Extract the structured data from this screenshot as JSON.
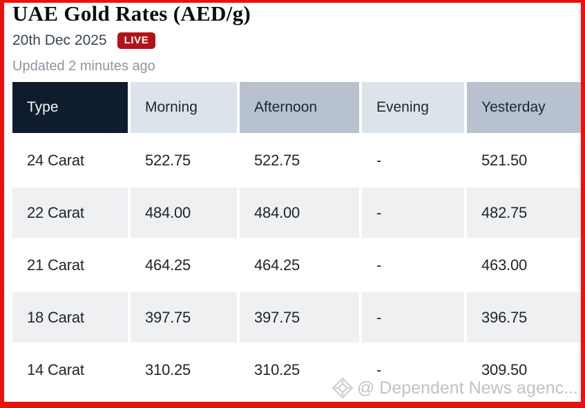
{
  "page": {
    "title": "UAE Gold Rates (AED/g)",
    "date": "20th Dec 2025",
    "live_badge": "LIVE",
    "updated": "Updated 2 minutes ago"
  },
  "table": {
    "columns": [
      "Type",
      "Morning",
      "Afternoon",
      "Evening",
      "Yesterday"
    ],
    "rows": [
      [
        "24 Carat",
        "522.75",
        "522.75",
        "-",
        "521.50"
      ],
      [
        "22 Carat",
        "484.00",
        "484.00",
        "-",
        "482.75"
      ],
      [
        "21 Carat",
        "464.25",
        "464.25",
        "-",
        "463.00"
      ],
      [
        "18 Carat",
        "397.75",
        "397.75",
        "-",
        "396.75"
      ],
      [
        "14 Carat",
        "310.25",
        "310.25",
        "-",
        "309.50"
      ]
    ]
  },
  "watermark": {
    "icon": "diamond-logo-icon",
    "text": "@ Dependent News agenc..."
  },
  "colors": {
    "frame_red": "#e8130f",
    "live_badge_red": "#b11318",
    "header_navy": "#0f1c2e",
    "header_light_gray": "#dce3ea",
    "header_medium_gray": "#b7c2ce",
    "row_alt_gray": "#eef0f2"
  }
}
